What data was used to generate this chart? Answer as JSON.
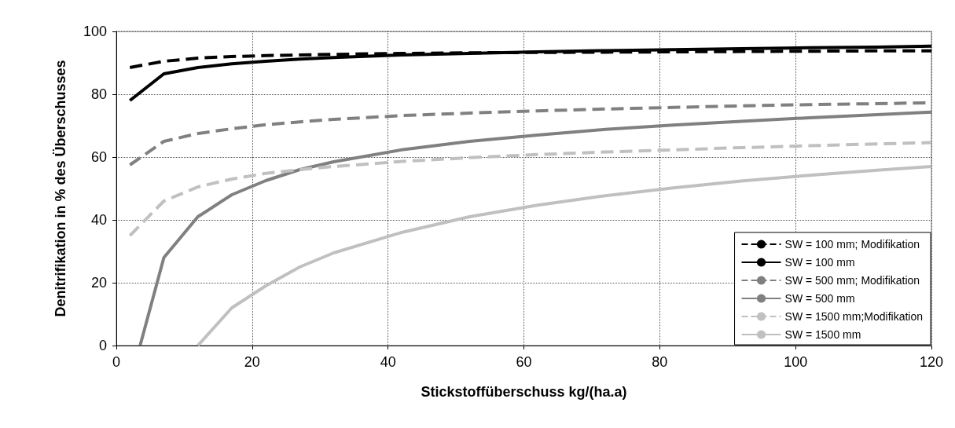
{
  "chart_data": {
    "type": "line",
    "xlabel": "Stickstoffüberschuss kg/(ha.a)",
    "ylabel": "Denitrifikation in % des Überschusses",
    "xlim": [
      0,
      120
    ],
    "xticks": [
      0,
      20,
      40,
      60,
      80,
      100,
      120
    ],
    "ylim": [
      0,
      100
    ],
    "yticks": [
      0,
      20,
      40,
      60,
      80,
      100
    ],
    "grid": true,
    "legend": "bottom right",
    "marker": "none",
    "series": [
      {
        "name": "SW = 100 mm; Modifikation",
        "color": "#000000",
        "line_style": "dashed",
        "x": [
          2,
          7,
          12,
          17,
          22,
          27,
          32,
          42,
          52,
          62,
          72,
          82,
          92,
          102,
          112,
          120
        ],
        "values": [
          88.5,
          90.5,
          91.5,
          92,
          92.3,
          92.5,
          92.7,
          93,
          93.2,
          93.3,
          93.4,
          93.5,
          93.6,
          93.7,
          93.8,
          93.8
        ]
      },
      {
        "name": "SW = 100 mm",
        "color": "#000000",
        "line_style": "solid",
        "x": [
          2,
          7,
          12,
          17,
          22,
          27,
          32,
          42,
          52,
          62,
          72,
          82,
          92,
          102,
          112,
          120
        ],
        "values": [
          78,
          86.5,
          88.5,
          89.7,
          90.5,
          91.2,
          91.7,
          92.5,
          93,
          93.5,
          93.9,
          94.2,
          94.5,
          94.8,
          95,
          95.3
        ]
      },
      {
        "name": "SW = 500 mm; Modifikation",
        "color": "#808080",
        "line_style": "dashed",
        "x": [
          2,
          7,
          12,
          17,
          22,
          27,
          32,
          42,
          52,
          62,
          72,
          82,
          92,
          102,
          112,
          120
        ],
        "values": [
          57.5,
          65,
          67.5,
          69,
          70.3,
          71.2,
          72,
          73.2,
          74,
          74.7,
          75.3,
          75.8,
          76.3,
          76.7,
          77,
          77.3
        ]
      },
      {
        "name": "SW = 500 mm",
        "color": "#808080",
        "line_style": "solid",
        "x": [
          3.5,
          7,
          12,
          17,
          22,
          27,
          32,
          42,
          52,
          62,
          72,
          82,
          92,
          102,
          112,
          120
        ],
        "values": [
          0,
          28,
          41,
          48,
          52.5,
          56,
          58.5,
          62.3,
          65,
          67,
          68.8,
          70.2,
          71.4,
          72.5,
          73.5,
          74.3
        ]
      },
      {
        "name": "SW = 1500 mm;Modifikation",
        "color": "#c0c0c0",
        "line_style": "dashed",
        "x": [
          2,
          7,
          12,
          17,
          22,
          27,
          32,
          42,
          52,
          62,
          72,
          82,
          92,
          102,
          112,
          120
        ],
        "values": [
          35,
          46,
          50.5,
          53,
          54.8,
          56,
          57,
          58.6,
          59.8,
          60.8,
          61.6,
          62.3,
          63,
          63.6,
          64.2,
          64.6
        ]
      },
      {
        "name": "SW = 1500 mm",
        "color": "#c0c0c0",
        "line_style": "solid",
        "x": [
          12,
          17,
          22,
          27,
          32,
          42,
          52,
          62,
          72,
          82,
          92,
          102,
          112,
          120
        ],
        "values": [
          0,
          12,
          19,
          25,
          29.5,
          36,
          41,
          44.7,
          47.7,
          50.2,
          52.4,
          54.2,
          55.8,
          57
        ]
      }
    ]
  }
}
